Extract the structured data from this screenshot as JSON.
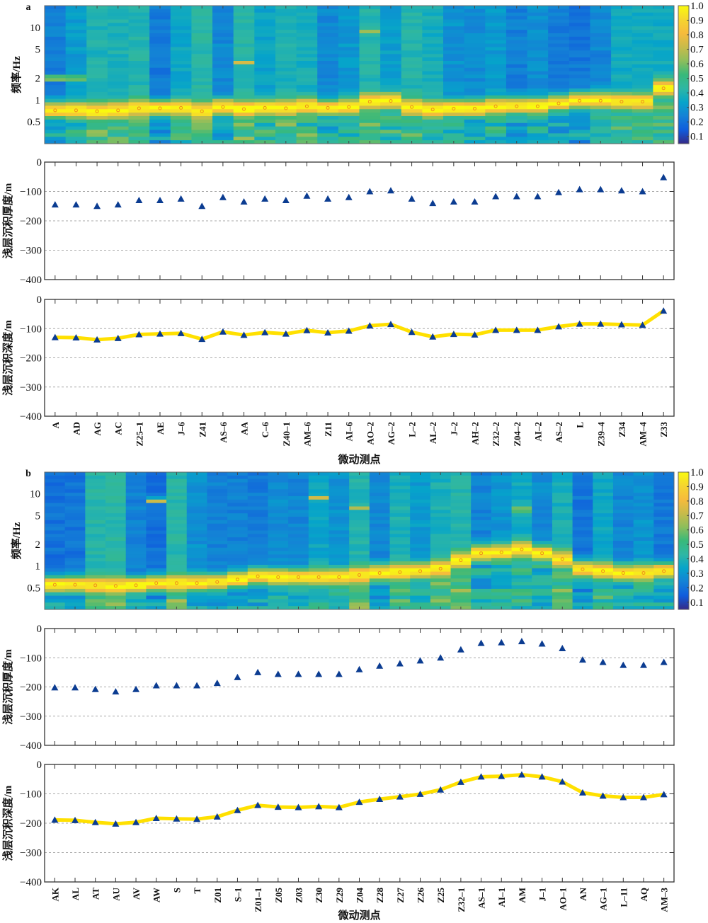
{
  "chart_data": [
    {
      "panel": "a",
      "type": "heatmap",
      "title": "a",
      "ylabel": "频率/Hz",
      "yscale": "log",
      "ylim": [
        0.25,
        20
      ],
      "yticks": [
        "0.5",
        "1",
        "2",
        "5",
        "10"
      ],
      "ytick_values": [
        0.5,
        1,
        2,
        5,
        10
      ],
      "colorbar": {
        "min": 0.05,
        "max": 1.0,
        "ticks": [
          "0.1",
          "0.2",
          "0.3",
          "0.4",
          "0.5",
          "0.6",
          "0.7",
          "0.8",
          "0.9",
          "1.0"
        ],
        "colormap": "parula"
      },
      "categories": [
        "A",
        "AD",
        "AG",
        "AC",
        "Z25–1",
        "AE",
        "J–6",
        "Z41",
        "AS–6",
        "AA",
        "C–6",
        "Z40–1",
        "AM–6",
        "Z11",
        "AI–6",
        "AO–2",
        "AG–2",
        "L–2",
        "AL–2",
        "J–2",
        "AH–2",
        "Z32–2",
        "Z04–2",
        "AI–2",
        "AS–2",
        "L",
        "Z39–4",
        "Z34",
        "AM–4",
        "Z33"
      ],
      "peak_frequency_hz": [
        0.72,
        0.72,
        0.7,
        0.72,
        0.77,
        0.77,
        0.78,
        0.7,
        0.8,
        0.75,
        0.78,
        0.77,
        0.82,
        0.78,
        0.8,
        0.95,
        0.97,
        0.8,
        0.74,
        0.76,
        0.76,
        0.82,
        0.82,
        0.82,
        0.9,
        0.98,
        0.98,
        0.95,
        0.95,
        1.45
      ],
      "secondary_features": [
        {
          "station": "A",
          "freq_hz": 2.0,
          "note": "weak secondary band"
        },
        {
          "station": "AD",
          "freq_hz": 2.0,
          "note": "weak secondary band"
        },
        {
          "station": "AA",
          "freq_hz": 3.2,
          "note": "narrow high-amplitude band"
        },
        {
          "station": "AO–2",
          "freq_hz": 8.5,
          "note": "narrow secondary band"
        }
      ]
    },
    {
      "panel": "a",
      "type": "scatter",
      "ylabel": "浅层沉积厚度/m",
      "ylim": [
        -400,
        0
      ],
      "yticks": [
        "0",
        "−100",
        "−200",
        "−300",
        "−400"
      ],
      "ytick_values": [
        0,
        -100,
        -200,
        -300,
        -400
      ],
      "grid": "dashed horizontal",
      "marker": "triangle",
      "categories_ref": "a",
      "values": [
        -145,
        -145,
        -150,
        -145,
        -130,
        -130,
        -125,
        -150,
        -120,
        -135,
        -125,
        -130,
        -115,
        -125,
        -120,
        -100,
        -97,
        -125,
        -140,
        -135,
        -135,
        -117,
        -117,
        -117,
        -103,
        -93,
        -93,
        -97,
        -100,
        -52
      ]
    },
    {
      "panel": "a",
      "type": "line",
      "ylabel": "浅层沉积深度/m",
      "xlabel": "微动测点",
      "ylim": [
        -400,
        0
      ],
      "yticks": [
        "0",
        "−100",
        "−200",
        "−300",
        "−400"
      ],
      "ytick_values": [
        0,
        -100,
        -200,
        -300,
        -400
      ],
      "grid": "dashed horizontal",
      "marker": "triangle",
      "line_color": "#FFE000",
      "categories_ref": "a",
      "values": [
        -130,
        -131,
        -138,
        -133,
        -120,
        -118,
        -116,
        -136,
        -111,
        -122,
        -113,
        -118,
        -106,
        -114,
        -108,
        -90,
        -85,
        -112,
        -128,
        -119,
        -121,
        -105,
        -105,
        -105,
        -93,
        -84,
        -84,
        -86,
        -88,
        -39
      ]
    },
    {
      "panel": "b",
      "type": "heatmap",
      "title": "b",
      "ylabel": "频率/Hz",
      "yscale": "log",
      "ylim": [
        0.25,
        20
      ],
      "yticks": [
        "0.5",
        "1",
        "2",
        "5",
        "10"
      ],
      "ytick_values": [
        0.5,
        1,
        2,
        5,
        10
      ],
      "colorbar": {
        "min": 0.05,
        "max": 1.0,
        "ticks": [
          "0.1",
          "0.2",
          "0.3",
          "0.4",
          "0.5",
          "0.6",
          "0.7",
          "0.8",
          "0.9",
          "1.0"
        ],
        "colormap": "parula"
      },
      "categories": [
        "AK",
        "AL",
        "AT",
        "AU",
        "AV",
        "AW",
        "S",
        "T",
        "Z01",
        "S–1",
        "Z01–1",
        "Z05",
        "Z03",
        "Z30",
        "Z29",
        "Z04",
        "Z28",
        "Z27",
        "Z26",
        "Z25",
        "Z32–1",
        "AS–1",
        "AI–1",
        "AM",
        "J–1",
        "AO–1",
        "AN",
        "AG–1",
        "L–11",
        "AQ",
        "AM–3"
      ],
      "peak_frequency_hz": [
        0.55,
        0.55,
        0.54,
        0.53,
        0.54,
        0.58,
        0.58,
        0.58,
        0.6,
        0.65,
        0.72,
        0.7,
        0.7,
        0.7,
        0.7,
        0.75,
        0.8,
        0.82,
        0.85,
        0.92,
        1.2,
        1.5,
        1.55,
        1.7,
        1.5,
        1.25,
        0.9,
        0.85,
        0.8,
        0.8,
        0.85
      ],
      "secondary_features": [
        {
          "station": "AW",
          "freq_hz": 8.0,
          "note": "narrow secondary band"
        },
        {
          "station": "Z30",
          "freq_hz": 9.0,
          "note": "secondary band"
        },
        {
          "station": "Z04",
          "freq_hz": 6.5,
          "note": "secondary band"
        },
        {
          "station": "AM",
          "freq_hz": 6.0,
          "note": "secondary band"
        }
      ]
    },
    {
      "panel": "b",
      "type": "scatter",
      "ylabel": "浅层沉积厚度/m",
      "ylim": [
        -400,
        0
      ],
      "yticks": [
        "0",
        "−100",
        "−200",
        "−300",
        "−400"
      ],
      "ytick_values": [
        0,
        -100,
        -200,
        -300,
        -400
      ],
      "grid": "dashed horizontal",
      "marker": "triangle",
      "categories_ref": "b",
      "values": [
        -202,
        -202,
        -208,
        -216,
        -208,
        -195,
        -195,
        -195,
        -187,
        -167,
        -150,
        -156,
        -156,
        -156,
        -156,
        -140,
        -128,
        -120,
        -110,
        -100,
        -72,
        -50,
        -48,
        -44,
        -52,
        -68,
        -107,
        -115,
        -125,
        -125,
        -115
      ]
    },
    {
      "panel": "b",
      "type": "line",
      "ylabel": "浅层沉积深度/m",
      "xlabel": "微动测点",
      "ylim": [
        -400,
        0
      ],
      "yticks": [
        "0",
        "−100",
        "−200",
        "−300",
        "−400"
      ],
      "ytick_values": [
        0,
        -100,
        -200,
        -300,
        -400
      ],
      "grid": "dashed horizontal",
      "marker": "triangle",
      "line_color": "#FFE000",
      "categories_ref": "b",
      "values": [
        -189,
        -190,
        -197,
        -202,
        -197,
        -183,
        -185,
        -186,
        -178,
        -156,
        -139,
        -145,
        -146,
        -143,
        -146,
        -128,
        -118,
        -110,
        -101,
        -86,
        -60,
        -42,
        -40,
        -35,
        -42,
        -59,
        -96,
        -107,
        -112,
        -112,
        -102
      ]
    }
  ],
  "colors": {
    "marker": "#0B3C91",
    "line": "#FFE000",
    "peak_dot": "#F28A1E",
    "grid": "#AAAAAA",
    "axis": "#333333"
  }
}
